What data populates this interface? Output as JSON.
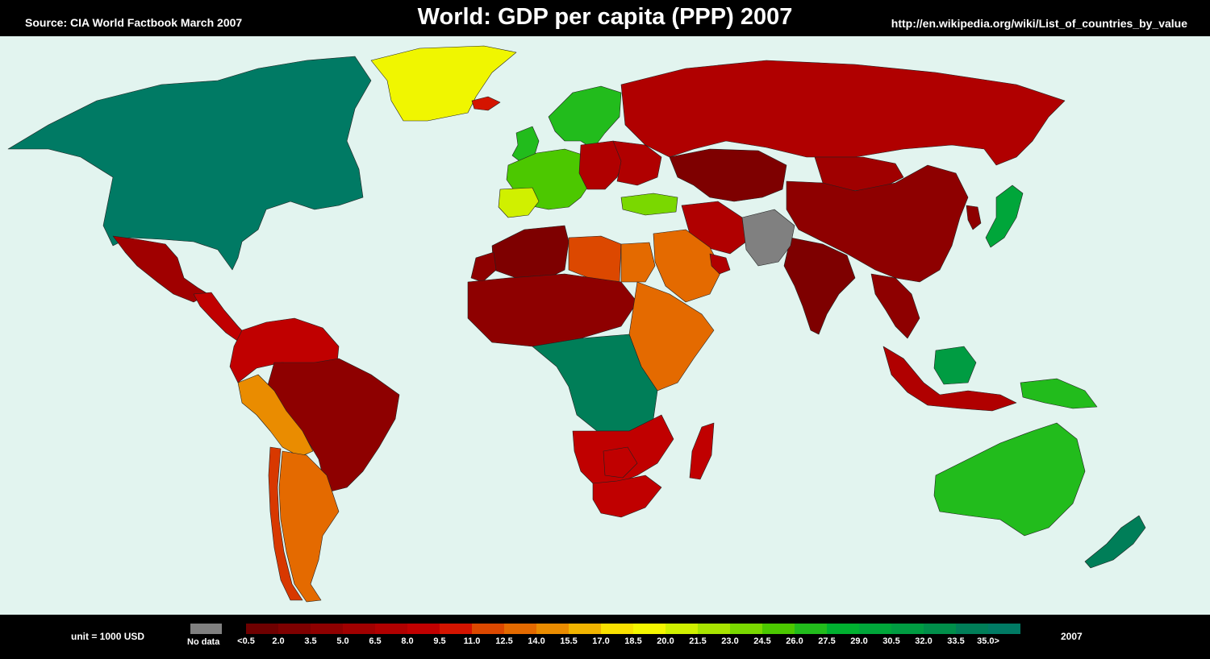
{
  "header": {
    "source": "Source: CIA World Factbook March 2007",
    "title": "World: GDP per capita (PPP) 2007",
    "url": "http://en.wikipedia.org/wiki/List_of_countries_by_value"
  },
  "legend": {
    "unit": "unit = 1000 USD",
    "no_data_label": "No data",
    "no_data_color": "#808080",
    "year": "2007",
    "scale_colors": [
      "#6e0000",
      "#7e0000",
      "#8e0000",
      "#a00000",
      "#b00000",
      "#c00000",
      "#d41400",
      "#dc4800",
      "#e46a00",
      "#ea8c00",
      "#f0b400",
      "#f8e000",
      "#f4f600",
      "#d0f000",
      "#a8e400",
      "#7ad800",
      "#4cc800",
      "#22bc1c",
      "#00b030",
      "#00a63a",
      "#009c42",
      "#008e4a",
      "#007e58",
      "#007a64"
    ],
    "tick_labels": [
      "<0.5",
      "2.0",
      "3.5",
      "5.0",
      "6.5",
      "8.0",
      "9.5",
      "11.0",
      "12.5",
      "14.0",
      "15.5",
      "17.0",
      "18.5",
      "20.0",
      "21.5",
      "23.0",
      "24.5",
      "26.0",
      "27.5",
      "29.0",
      "30.5",
      "32.0",
      "33.5",
      "35.0>"
    ]
  },
  "map": {
    "ocean_color": "#e2f4ef",
    "regions": [
      {
        "name": "North America",
        "color": "#007a64"
      },
      {
        "name": "Greenland",
        "color": "#f0f600"
      },
      {
        "name": "Mexico",
        "color": "#d41400"
      },
      {
        "name": "Central America",
        "color": "#a00000"
      },
      {
        "name": "South America north",
        "color": "#c00000"
      },
      {
        "name": "Brazil",
        "color": "#c00000"
      },
      {
        "name": "Bolivia",
        "color": "#8e0000"
      },
      {
        "name": "Argentina",
        "color": "#ea8c00"
      },
      {
        "name": "Chile",
        "color": "#e46a00"
      },
      {
        "name": "Russia",
        "color": "#d83800"
      },
      {
        "name": "Scandinavia",
        "color": "#22bc1c"
      },
      {
        "name": "Western Europe",
        "color": "#22bc1c"
      },
      {
        "name": "Spain",
        "color": "#4cc800"
      },
      {
        "name": "Eastern Europe",
        "color": "#d0f000"
      },
      {
        "name": "Ukraine",
        "color": "#b00000"
      },
      {
        "name": "Central Asia",
        "color": "#b00000"
      },
      {
        "name": "China",
        "color": "#b00000"
      },
      {
        "name": "Mongolia",
        "color": "#7e0000"
      },
      {
        "name": "India",
        "color": "#a00000"
      },
      {
        "name": "South Asia",
        "color": "#8e0000"
      },
      {
        "name": "Southeast Asia",
        "color": "#8e0000"
      },
      {
        "name": "Japan",
        "color": "#00a63a"
      },
      {
        "name": "Korea",
        "color": "#7ad800"
      },
      {
        "name": "North Africa",
        "color": "#b00000"
      },
      {
        "name": "Libya",
        "color": "#e46a00"
      },
      {
        "name": "Egypt",
        "color": "#b00000"
      },
      {
        "name": "West Sahel",
        "color": "#7e0000"
      },
      {
        "name": "Western Sahara",
        "color": "#808080"
      },
      {
        "name": "Central Africa",
        "color": "#8e0000"
      },
      {
        "name": "East Africa",
        "color": "#7e0000"
      },
      {
        "name": "Southern Africa",
        "color": "#8e0000"
      },
      {
        "name": "Botswana",
        "color": "#dc4800"
      },
      {
        "name": "South Africa",
        "color": "#e46a00"
      },
      {
        "name": "Madagascar",
        "color": "#8e0000"
      },
      {
        "name": "Saudi Arabia",
        "color": "#e46a00"
      },
      {
        "name": "Gulf States",
        "color": "#007e58"
      },
      {
        "name": "Iran",
        "color": "#c00000"
      },
      {
        "name": "Turkey",
        "color": "#c00000"
      },
      {
        "name": "Indonesia",
        "color": "#c00000"
      },
      {
        "name": "Borneo",
        "color": "#c00000"
      },
      {
        "name": "Papua New Guinea",
        "color": "#b00000"
      },
      {
        "name": "Australia",
        "color": "#009c42"
      },
      {
        "name": "New Zealand",
        "color": "#22bc1c"
      },
      {
        "name": "British Isles",
        "color": "#22bc1c"
      },
      {
        "name": "Iceland",
        "color": "#007e58"
      }
    ]
  }
}
